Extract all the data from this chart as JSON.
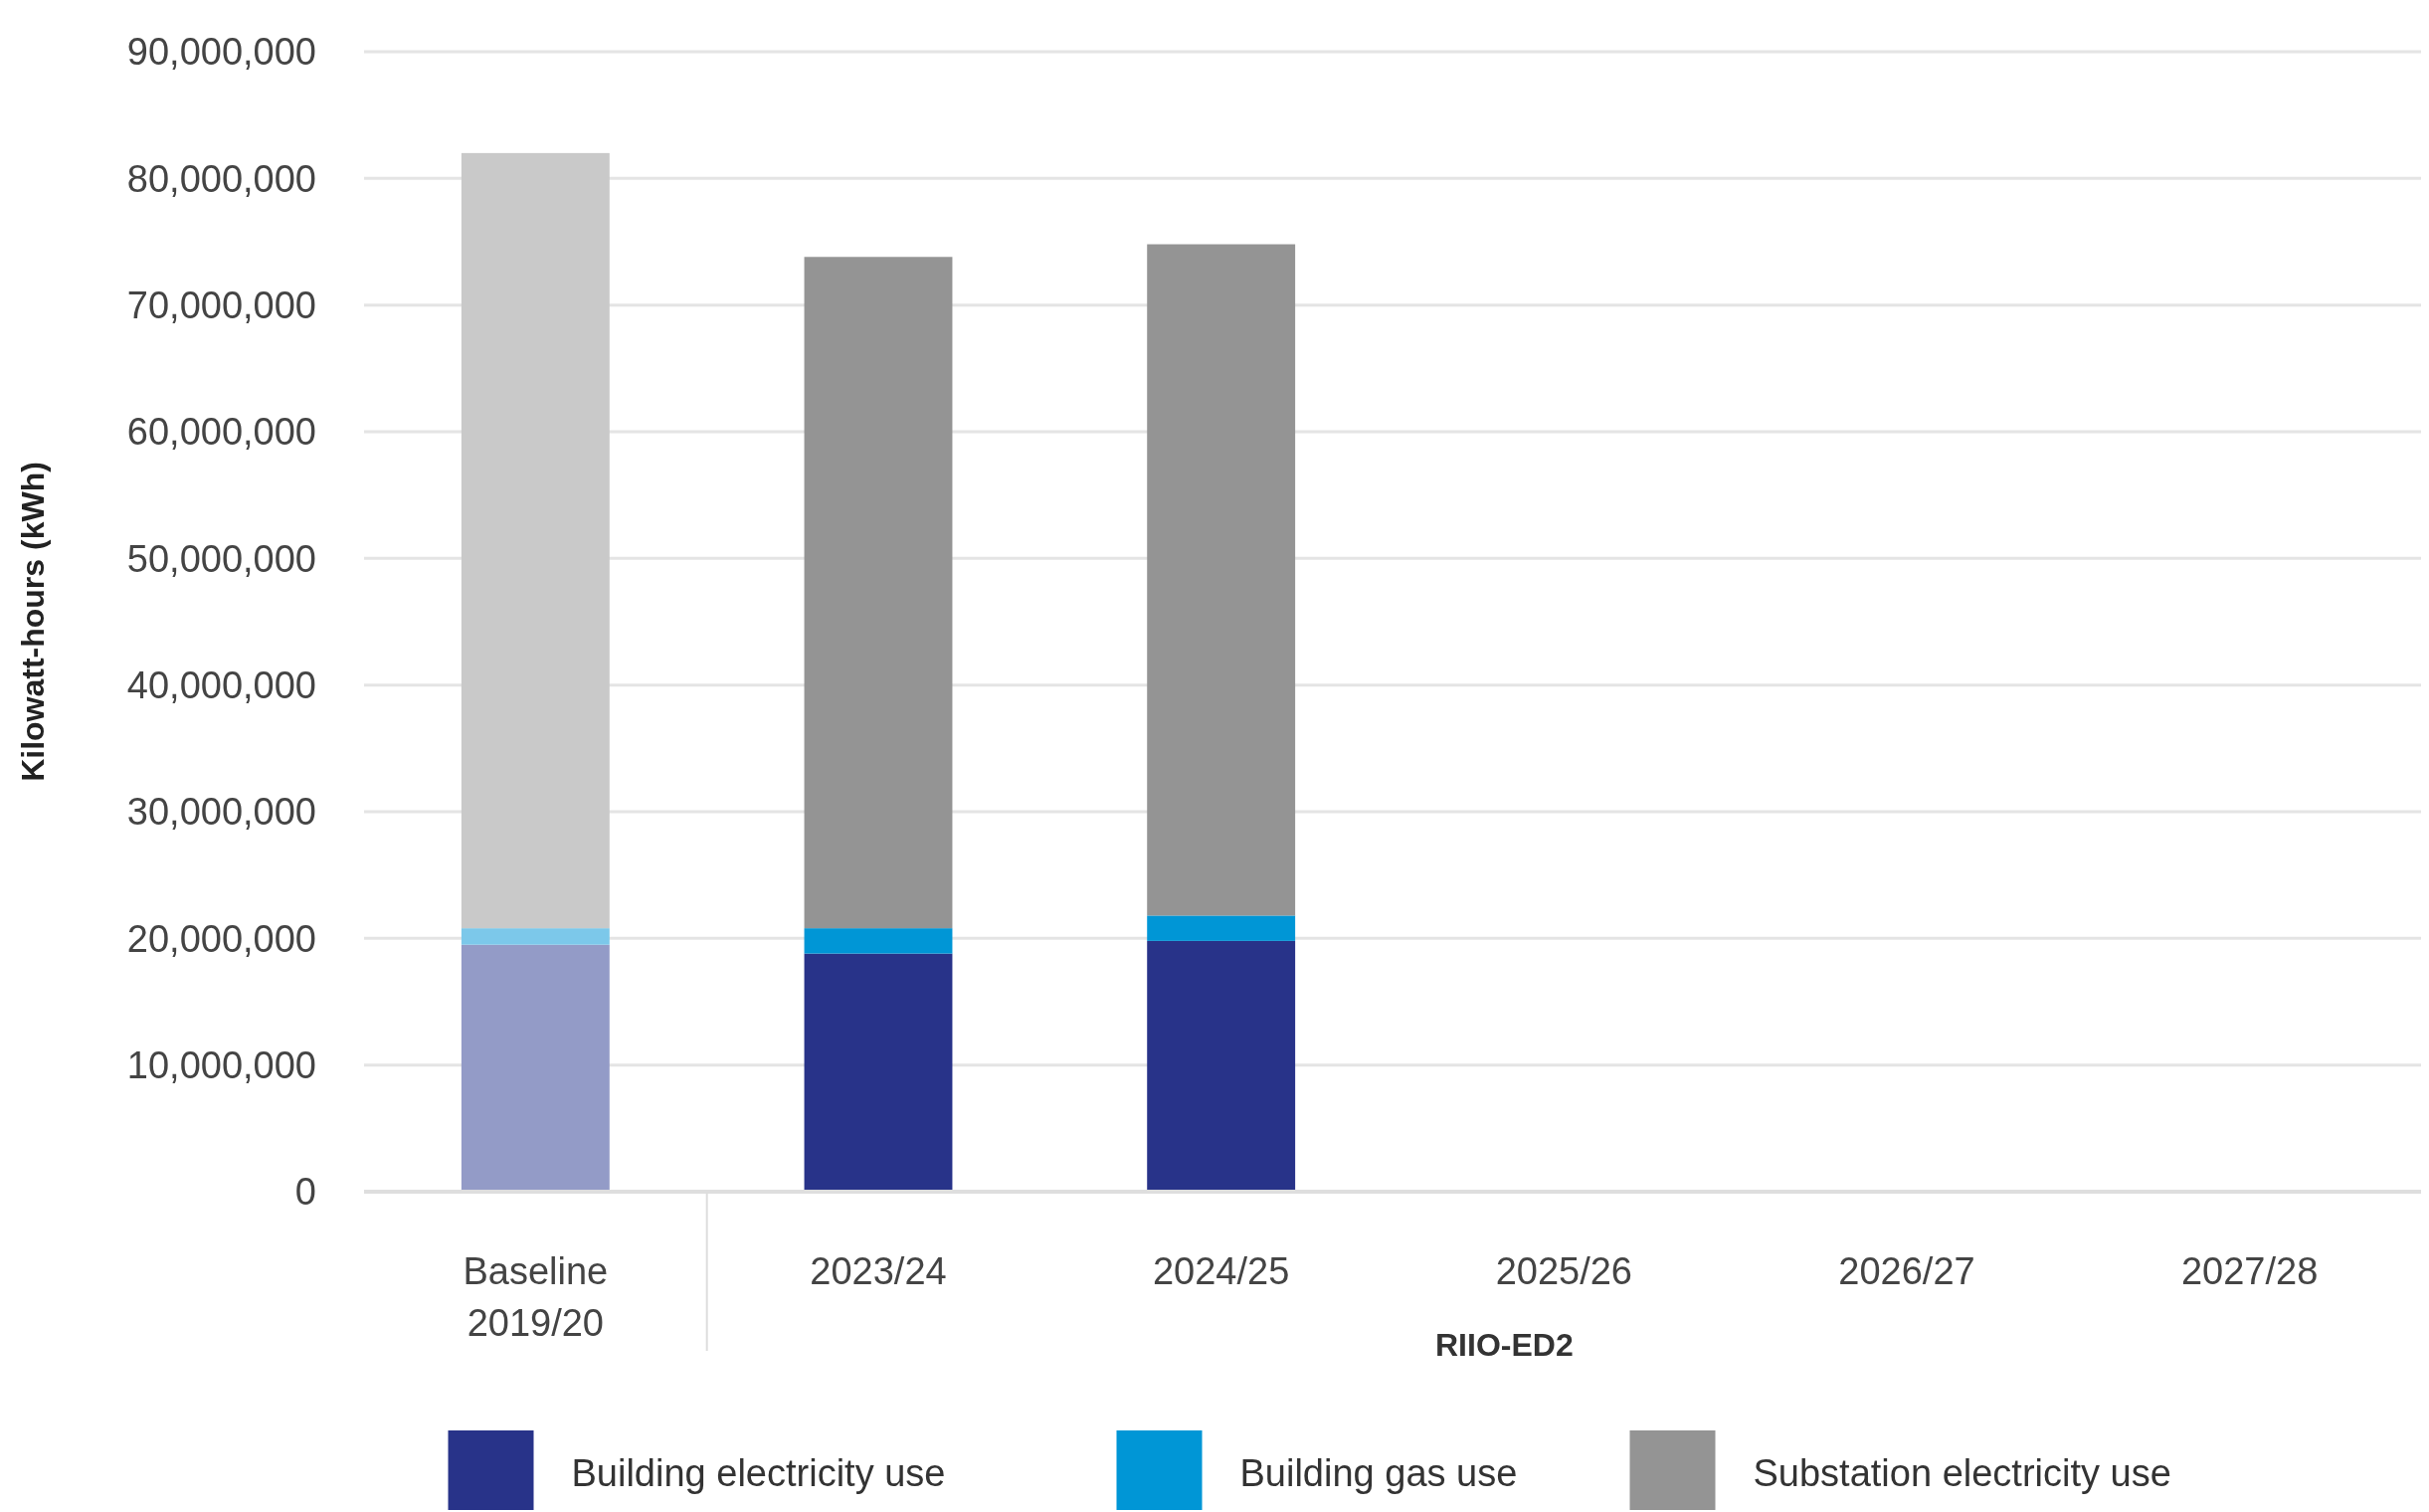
{
  "chart_data": {
    "type": "bar",
    "stacked": true,
    "ylabel": "Kilowatt-hours (kWh)",
    "xlabel": "RIIO-ED2",
    "categories": [
      "Baseline 2019/20",
      "2023/24",
      "2024/25",
      "2025/26",
      "2026/27",
      "2027/28"
    ],
    "series": [
      {
        "name": "Building electricity use",
        "color": "#283389",
        "colors": [
          "#939bc7",
          "#283389",
          "#283389",
          null,
          null,
          null
        ],
        "values": [
          19500000,
          18800000,
          19800000,
          null,
          null,
          null
        ]
      },
      {
        "name": "Building gas use",
        "color": "#0096d6",
        "colors": [
          "#7cc8ea",
          "#0096d6",
          "#0096d6",
          null,
          null,
          null
        ],
        "values": [
          1300000,
          2000000,
          2000000,
          null,
          null,
          null
        ]
      },
      {
        "name": "Substation electricity use",
        "color": "#949494",
        "colors": [
          "#c9c9c9",
          "#949494",
          "#949494",
          null,
          null,
          null
        ],
        "values": [
          61200000,
          53000000,
          53000000,
          null,
          null,
          null
        ]
      }
    ],
    "ylim": [
      0,
      90000000
    ],
    "yticks": [
      {
        "value": 0,
        "label": "0"
      },
      {
        "value": 10000000,
        "label": "10,000,000"
      },
      {
        "value": 20000000,
        "label": "20,000,000"
      },
      {
        "value": 30000000,
        "label": "30,000,000"
      },
      {
        "value": 40000000,
        "label": "40,000,000"
      },
      {
        "value": 50000000,
        "label": "50,000,000"
      },
      {
        "value": 60000000,
        "label": "60,000,000"
      },
      {
        "value": 70000000,
        "label": "70,000,000"
      },
      {
        "value": 80000000,
        "label": "80,000,000"
      },
      {
        "value": 90000000,
        "label": "90,000,000"
      }
    ],
    "grid": "y",
    "legend": "bottom"
  }
}
